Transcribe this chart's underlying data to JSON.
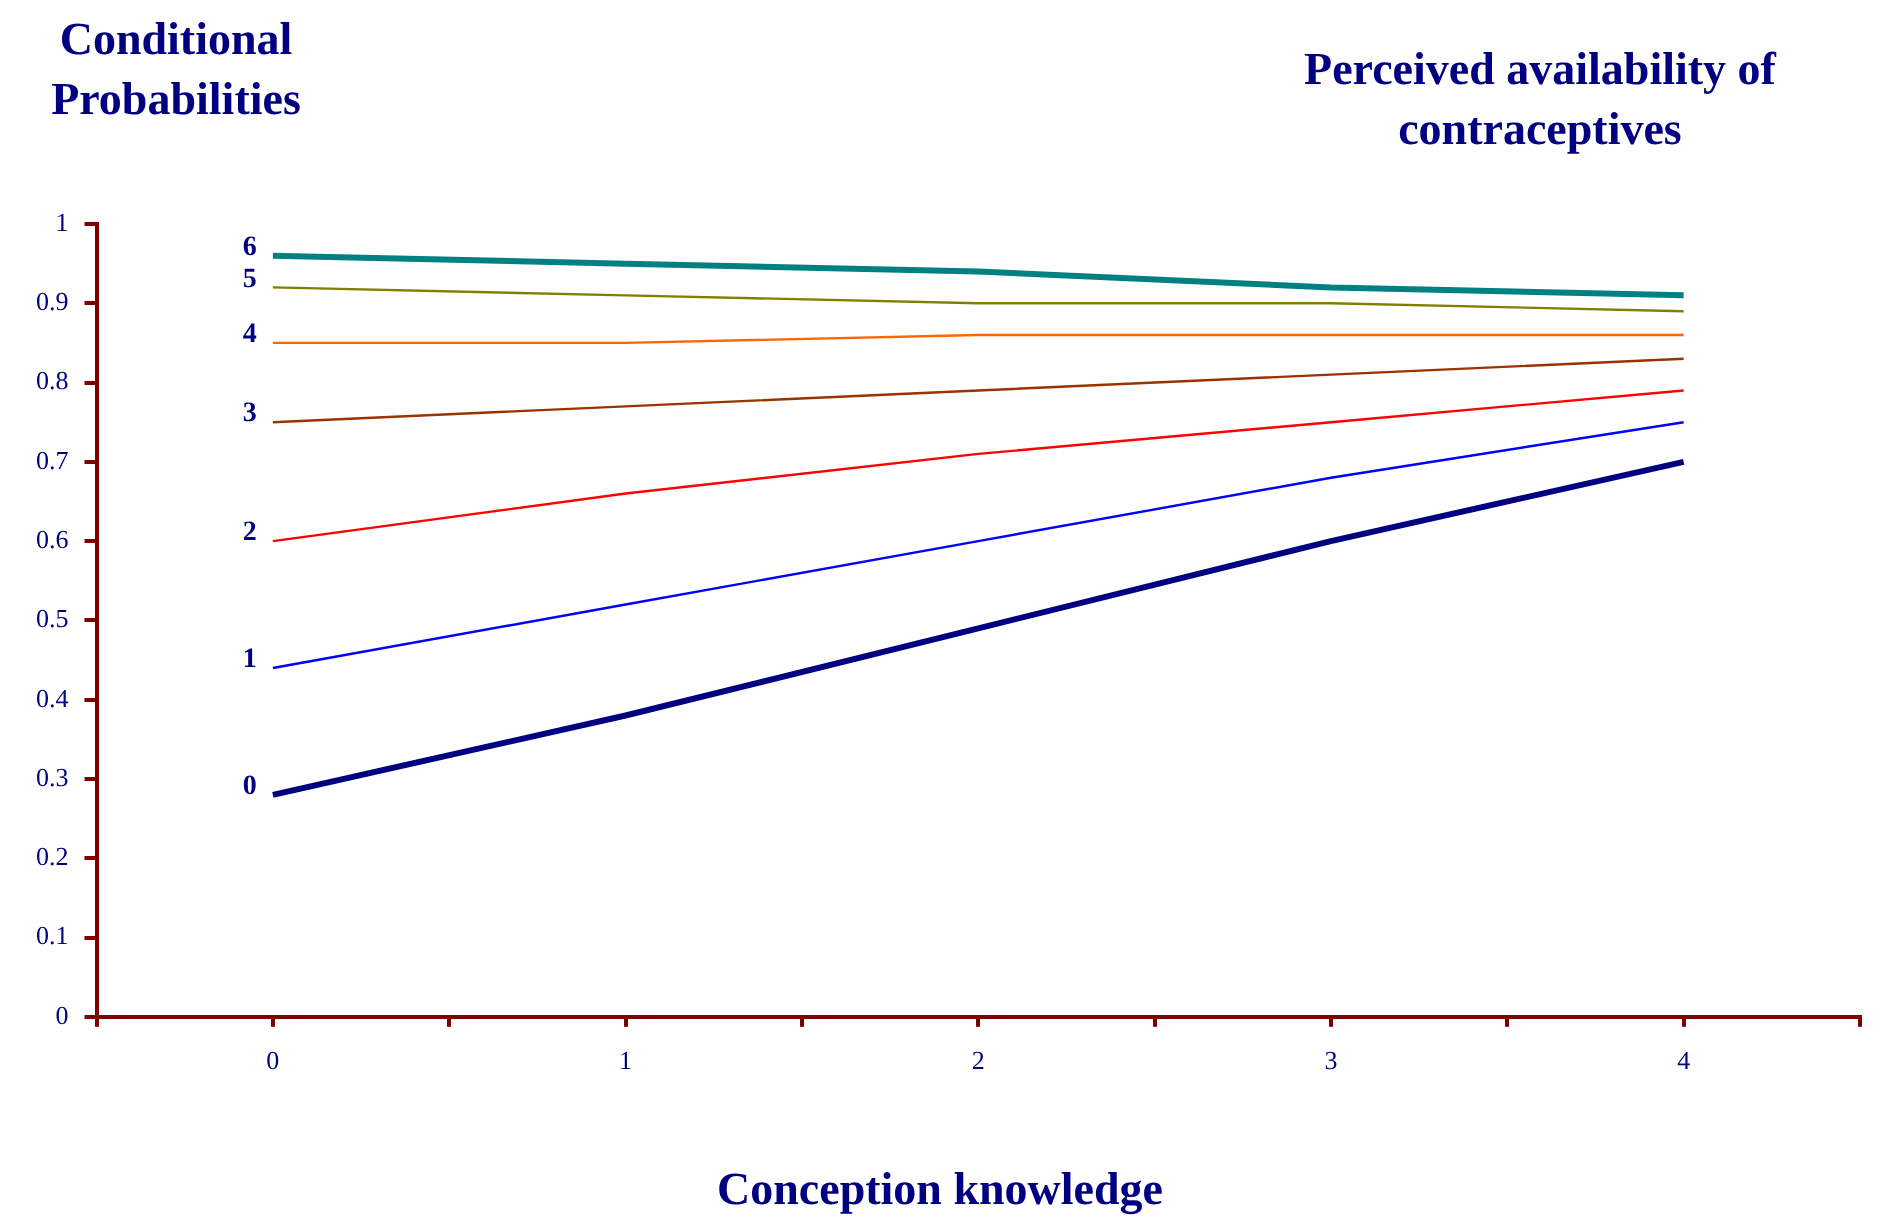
{
  "chart_data": {
    "type": "line",
    "ylabel": "Conditional Probabilities",
    "legend_title": "Perceived availability of contraceptives",
    "xlabel": "Conception knowledge",
    "x": [
      0,
      1,
      2,
      3,
      4
    ],
    "series": [
      {
        "name": "0",
        "color": "#000080",
        "values": [
          0.28,
          0.38,
          0.49,
          0.6,
          0.7
        ]
      },
      {
        "name": "1",
        "color": "#0000ff",
        "values": [
          0.44,
          0.52,
          0.6,
          0.68,
          0.75
        ]
      },
      {
        "name": "2",
        "color": "#ff0000",
        "values": [
          0.6,
          0.66,
          0.71,
          0.75,
          0.79
        ]
      },
      {
        "name": "3",
        "color": "#993300",
        "values": [
          0.75,
          0.77,
          0.79,
          0.81,
          0.83
        ]
      },
      {
        "name": "4",
        "color": "#ff6600",
        "values": [
          0.85,
          0.85,
          0.86,
          0.86,
          0.86
        ]
      },
      {
        "name": "5",
        "color": "#808000",
        "values": [
          0.92,
          0.91,
          0.9,
          0.9,
          0.89
        ]
      },
      {
        "name": "6",
        "color": "#008080",
        "values": [
          0.96,
          0.95,
          0.94,
          0.92,
          0.91
        ]
      }
    ],
    "xlim": [
      -0.5,
      4.5
    ],
    "xticks": [
      {
        "value": -0.5,
        "label": null
      },
      0,
      {
        "value": 0.5,
        "label": null
      },
      1,
      {
        "value": 1.5,
        "label": null
      },
      2,
      {
        "value": 2.5,
        "label": null
      },
      3,
      {
        "value": 3.5,
        "label": null
      },
      4,
      {
        "value": 4.5,
        "label": null
      }
    ],
    "ylim": [
      0,
      1
    ],
    "yticks": [
      0,
      0.1,
      0.2,
      0.3,
      0.4,
      0.5,
      0.6,
      0.7,
      0.8,
      0.9,
      1
    ],
    "marker": "none",
    "line_style": "solid"
  }
}
